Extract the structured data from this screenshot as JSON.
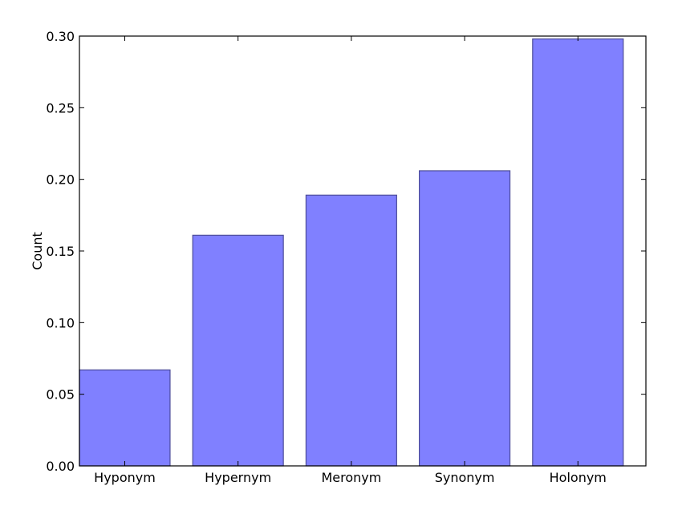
{
  "chart_data": {
    "type": "bar",
    "title": "",
    "xlabel": "",
    "ylabel": "Count",
    "categories": [
      "Hyponym",
      "Hypernym",
      "Meronym",
      "Synonym",
      "Holonym"
    ],
    "values": [
      0.067,
      0.161,
      0.189,
      0.206,
      0.298
    ],
    "ylim": [
      0,
      0.3
    ],
    "yticks": [
      "0.00",
      "0.05",
      "0.10",
      "0.15",
      "0.20",
      "0.25",
      "0.30"
    ],
    "grid": false,
    "legend": "none",
    "bar_color": "#8080ff",
    "bar_edge_color": "#4d4d99"
  }
}
